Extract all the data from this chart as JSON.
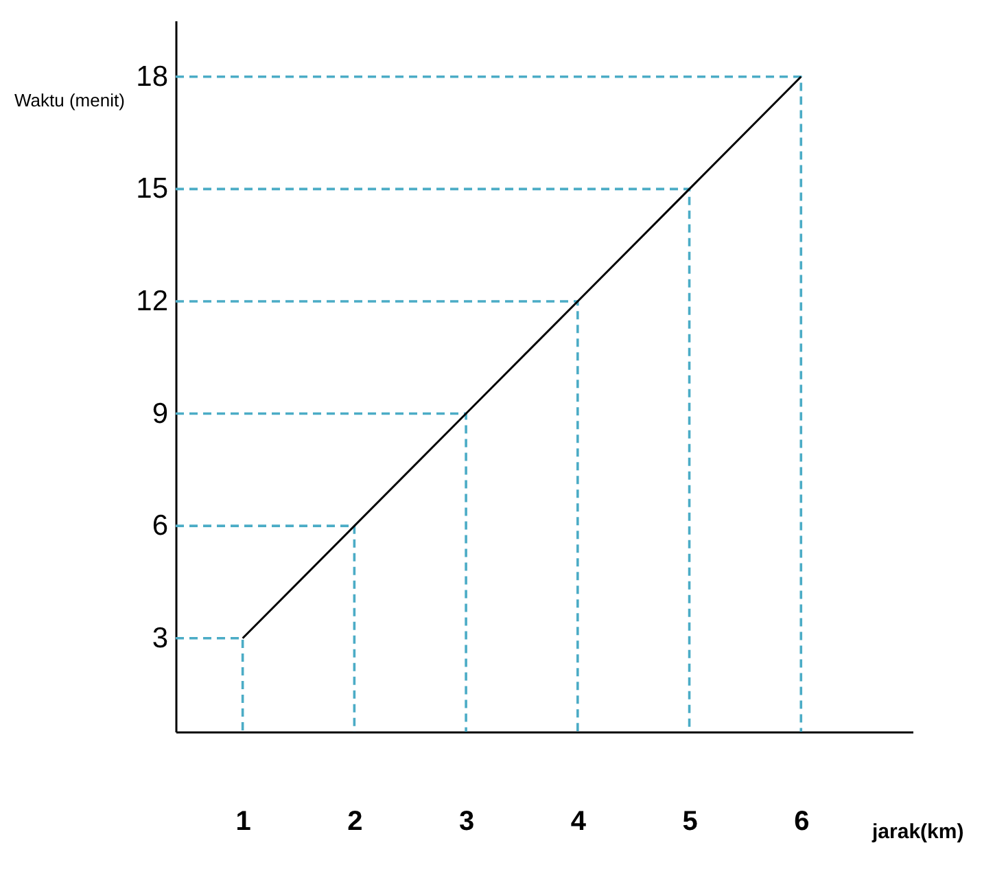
{
  "chart_data": {
    "type": "line",
    "xlabel": "jarak(km)",
    "ylabel": "Waktu (menit)",
    "x": [
      1,
      2,
      3,
      4,
      5,
      6
    ],
    "series": [
      {
        "color": "#000000",
        "values": [
          3,
          6,
          9,
          12,
          15,
          18
        ]
      },
      {
        "color": "#4bacc6",
        "line_style": "dashed",
        "x": [
          0.4,
          1,
          1
        ],
        "values": [
          3,
          3,
          0.5
        ]
      },
      {
        "color": "#4bacc6",
        "line_style": "dashed",
        "x": [
          0.4,
          2,
          2
        ],
        "values": [
          6,
          6,
          0.5
        ]
      },
      {
        "color": "#4bacc6",
        "line_style": "dashed",
        "x": [
          0.4,
          3,
          3
        ],
        "values": [
          9,
          9,
          0.5
        ]
      },
      {
        "color": "#4bacc6",
        "line_style": "dashed",
        "x": [
          0.4,
          4,
          4
        ],
        "values": [
          12,
          12,
          0.5
        ]
      },
      {
        "color": "#4bacc6",
        "line_style": "dashed",
        "x": [
          0.4,
          5,
          5
        ],
        "values": [
          15,
          15,
          0.5
        ]
      },
      {
        "color": "#4bacc6",
        "line_style": "dashed",
        "x": [
          0.4,
          6,
          6
        ],
        "values": [
          18,
          18,
          0.5
        ]
      }
    ],
    "xlim": [
      0.4,
      7
    ],
    "ylim": [
      0.5,
      19.5
    ],
    "xticks": [
      1,
      2,
      3,
      4,
      5,
      6
    ],
    "yticks": [
      3,
      6,
      9,
      12,
      15,
      18
    ],
    "marker": "none",
    "line_style": "solid"
  }
}
